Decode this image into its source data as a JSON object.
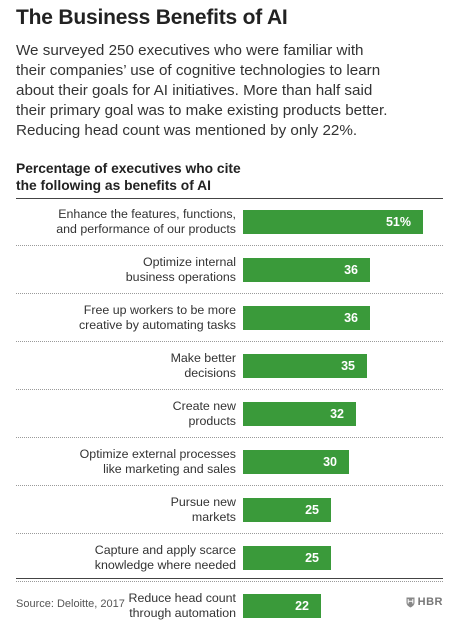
{
  "header": {
    "title": "The Business Benefits of AI",
    "intro_lines": [
      "We surveyed 250 executives who were familiar with",
      "their companies’ use of cognitive technologies to learn",
      "about their goals for AI initiatives. More than half said",
      "their primary goal was to make existing products better.",
      "Reducing head count was mentioned by only 22%."
    ]
  },
  "chart_data": {
    "type": "bar",
    "orientation": "horizontal",
    "title_lines": [
      "Percentage of executives who cite",
      "the following as benefits of AI"
    ],
    "categories": [
      [
        "Enhance the features, functions,",
        "and performance of our products"
      ],
      [
        "Optimize internal",
        "business operations"
      ],
      [
        "Free up workers to be more",
        "creative by automating tasks"
      ],
      [
        "Make better",
        "decisions"
      ],
      [
        "Create new",
        "products"
      ],
      [
        "Optimize external processes",
        "like marketing and sales"
      ],
      [
        "Pursue new",
        "markets"
      ],
      [
        "Capture and apply scarce",
        "knowledge where needed"
      ],
      [
        "Reduce head count",
        "through automation"
      ]
    ],
    "values": [
      51,
      36,
      36,
      35,
      32,
      30,
      25,
      25,
      22
    ],
    "value_labels": [
      "51%",
      "36",
      "36",
      "35",
      "32",
      "30",
      "25",
      "25",
      "22"
    ],
    "xlim": [
      0,
      51
    ],
    "bar_color": "#3a9a3a",
    "grid": false
  },
  "footer": {
    "source": "Source: Deloitte, 2017",
    "brand": "HBR",
    "brand_icon": "shield-icon"
  }
}
